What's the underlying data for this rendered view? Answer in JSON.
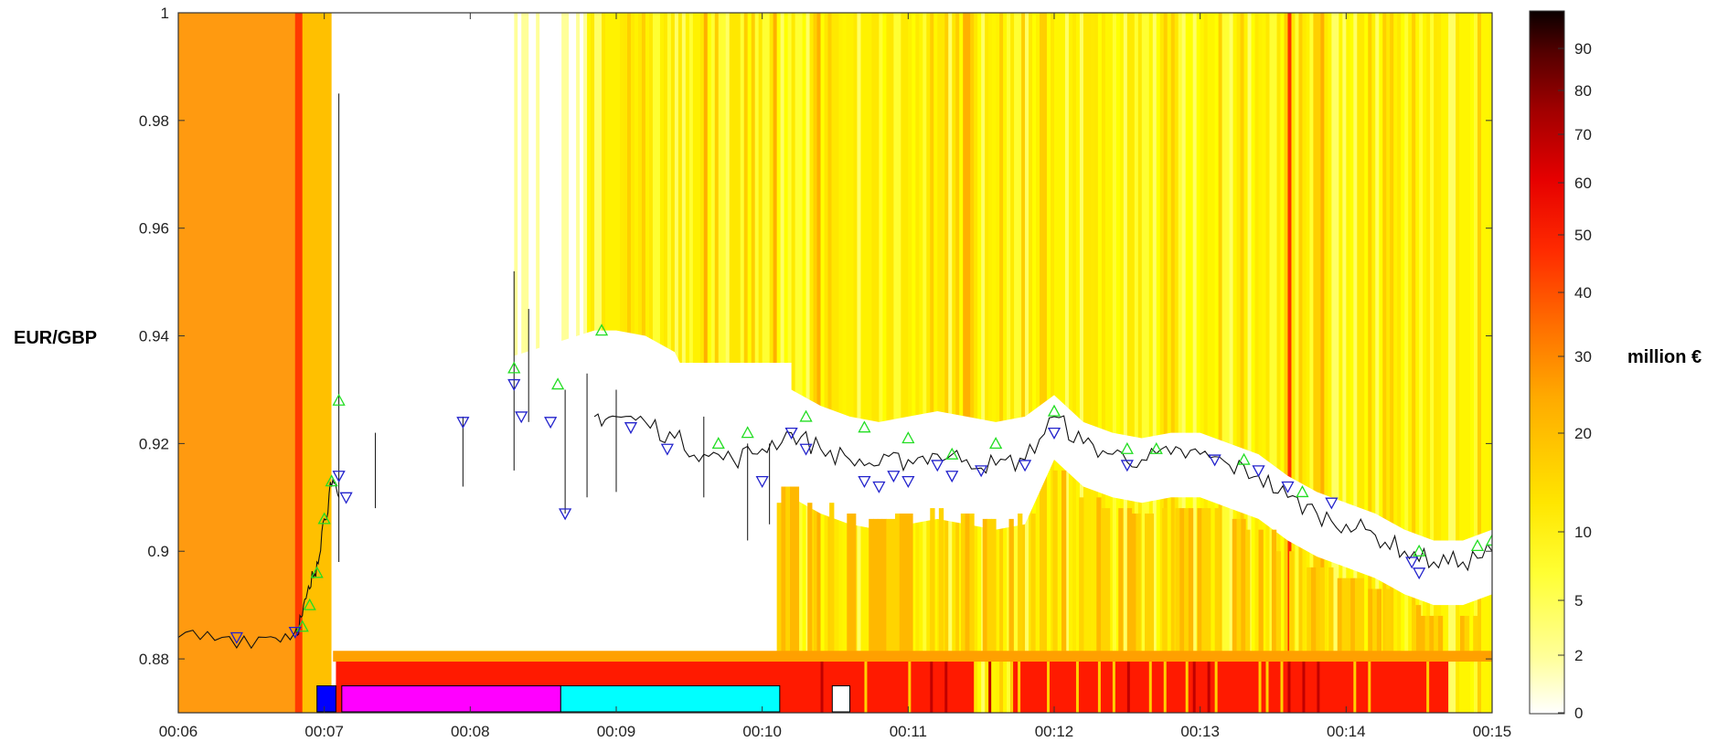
{
  "chart_data": {
    "type": "heatmap",
    "ylabel": "EUR/GBP",
    "colorbar_label": "million €",
    "x_ticks": [
      "00:06",
      "00:07",
      "00:08",
      "00:09",
      "00:10",
      "00:11",
      "00:12",
      "00:13",
      "00:14",
      "00:15"
    ],
    "y_ticks": [
      "1",
      "0.98",
      "0.96",
      "0.94",
      "0.92",
      "0.9",
      "0.88"
    ],
    "colorbar_ticks": [
      "90",
      "80",
      "70",
      "60",
      "50",
      "40",
      "30",
      "20",
      "10",
      "5",
      "2",
      "0"
    ],
    "xlim_minutes": [
      6,
      15
    ],
    "ylim": [
      0.87,
      1.0
    ],
    "colormap": "hot (reversed, white = 0, black = max)",
    "price_series": [
      [
        6.0,
        0.884
      ],
      [
        6.3,
        0.884
      ],
      [
        6.6,
        0.884
      ],
      [
        6.8,
        0.885
      ],
      [
        6.85,
        0.888
      ],
      [
        6.9,
        0.893
      ],
      [
        6.95,
        0.898
      ],
      [
        7.0,
        0.906
      ],
      [
        7.05,
        0.912
      ],
      [
        7.1,
        0.91
      ],
      [
        8.85,
        0.925
      ],
      [
        9.0,
        0.925
      ],
      [
        9.2,
        0.924
      ],
      [
        9.4,
        0.921
      ],
      [
        9.6,
        0.918
      ],
      [
        9.8,
        0.917
      ],
      [
        10.0,
        0.919
      ],
      [
        10.2,
        0.922
      ],
      [
        10.4,
        0.919
      ],
      [
        10.6,
        0.917
      ],
      [
        10.8,
        0.916
      ],
      [
        11.0,
        0.917
      ],
      [
        11.2,
        0.918
      ],
      [
        11.4,
        0.917
      ],
      [
        11.6,
        0.916
      ],
      [
        11.8,
        0.917
      ],
      [
        12.0,
        0.925
      ],
      [
        12.2,
        0.92
      ],
      [
        12.4,
        0.918
      ],
      [
        12.6,
        0.917
      ],
      [
        12.8,
        0.918
      ],
      [
        13.0,
        0.918
      ],
      [
        13.2,
        0.916
      ],
      [
        13.4,
        0.914
      ],
      [
        13.6,
        0.91
      ],
      [
        13.8,
        0.907
      ],
      [
        14.0,
        0.905
      ],
      [
        14.2,
        0.903
      ],
      [
        14.4,
        0.9
      ],
      [
        14.6,
        0.898
      ],
      [
        14.8,
        0.898
      ],
      [
        15.0,
        0.9
      ]
    ],
    "buy_markers_green_up": [
      [
        6.85,
        0.886
      ],
      [
        6.9,
        0.89
      ],
      [
        6.95,
        0.896
      ],
      [
        7.0,
        0.906
      ],
      [
        7.05,
        0.913
      ],
      [
        7.1,
        0.928
      ],
      [
        8.3,
        0.934
      ],
      [
        8.6,
        0.931
      ],
      [
        8.9,
        0.941
      ],
      [
        9.7,
        0.92
      ],
      [
        9.9,
        0.922
      ],
      [
        10.3,
        0.925
      ],
      [
        10.7,
        0.923
      ],
      [
        11.0,
        0.921
      ],
      [
        11.3,
        0.918
      ],
      [
        11.6,
        0.92
      ],
      [
        12.0,
        0.926
      ],
      [
        12.5,
        0.919
      ],
      [
        12.7,
        0.919
      ],
      [
        13.3,
        0.917
      ],
      [
        13.7,
        0.911
      ],
      [
        14.5,
        0.9
      ],
      [
        14.9,
        0.901
      ],
      [
        15.0,
        0.902
      ]
    ],
    "sell_markers_blue_down": [
      [
        6.4,
        0.884
      ],
      [
        6.8,
        0.885
      ],
      [
        7.1,
        0.914
      ],
      [
        7.15,
        0.91
      ],
      [
        7.95,
        0.924
      ],
      [
        8.3,
        0.931
      ],
      [
        8.35,
        0.925
      ],
      [
        8.55,
        0.924
      ],
      [
        8.65,
        0.907
      ],
      [
        9.1,
        0.923
      ],
      [
        9.35,
        0.919
      ],
      [
        10.0,
        0.913
      ],
      [
        10.2,
        0.922
      ],
      [
        10.3,
        0.919
      ],
      [
        10.7,
        0.913
      ],
      [
        10.8,
        0.912
      ],
      [
        10.9,
        0.914
      ],
      [
        11.0,
        0.913
      ],
      [
        11.2,
        0.916
      ],
      [
        11.3,
        0.914
      ],
      [
        11.5,
        0.915
      ],
      [
        11.8,
        0.916
      ],
      [
        12.0,
        0.922
      ],
      [
        12.5,
        0.916
      ],
      [
        13.1,
        0.917
      ],
      [
        13.4,
        0.915
      ],
      [
        13.6,
        0.912
      ],
      [
        13.9,
        0.909
      ],
      [
        14.45,
        0.898
      ],
      [
        14.5,
        0.896
      ]
    ],
    "bottom_bars": [
      {
        "from": 7.08,
        "to": 11.45,
        "color": "#ff1a00"
      },
      {
        "from": 11.7,
        "to": 14.7,
        "color": "#ff1a00"
      }
    ],
    "regime_boxes": [
      {
        "from": 6.95,
        "to": 7.08,
        "color": "#0000ff"
      },
      {
        "from": 7.12,
        "to": 8.62,
        "color": "#ff00ff"
      },
      {
        "from": 8.62,
        "to": 10.12,
        "color": "#00ffff"
      },
      {
        "from": 10.48,
        "to": 10.6,
        "color": "#ffffff"
      }
    ]
  }
}
